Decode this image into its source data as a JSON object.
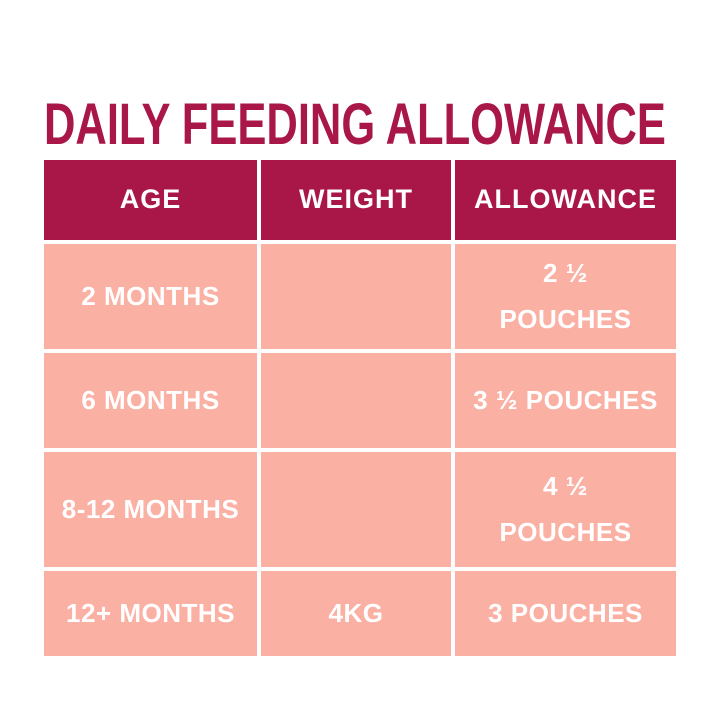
{
  "title": "DAILY FEEDING ALLOWANCE",
  "colors": {
    "accent_crimson": "#A91648",
    "row_pink": "#FBB0A4",
    "text_on_fill": "#FFFFFF",
    "background": "#FFFFFF"
  },
  "table": {
    "columns": [
      {
        "key": "age",
        "label": "AGE"
      },
      {
        "key": "weight",
        "label": "WEIGHT"
      },
      {
        "key": "allowance",
        "label": "ALLOWANCE"
      }
    ],
    "rows": [
      {
        "age": "2 MONTHS",
        "weight": "",
        "allowance": "2 ½\nPOUCHES"
      },
      {
        "age": "6 MONTHS",
        "weight": "",
        "allowance": "3 ½ POUCHES"
      },
      {
        "age": "8-12 MONTHS",
        "weight": "",
        "allowance": "4 ½\nPOUCHES"
      },
      {
        "age": "12+ MONTHS",
        "weight": "4KG",
        "allowance": "3 POUCHES"
      }
    ]
  },
  "chart_data": {
    "type": "table",
    "title": "DAILY FEEDING ALLOWANCE",
    "columns": [
      "AGE",
      "WEIGHT",
      "ALLOWANCE"
    ],
    "rows": [
      [
        "2 MONTHS",
        "",
        "2 ½ POUCHES"
      ],
      [
        "6 MONTHS",
        "",
        "3 ½ POUCHES"
      ],
      [
        "8-12 MONTHS",
        "",
        "4 ½ POUCHES"
      ],
      [
        "12+ MONTHS",
        "4KG",
        "3 POUCHES"
      ]
    ],
    "layout": {
      "header_fill": "#A91648",
      "row_fill": "#FBB0A4",
      "grid_gap_color": "#FFFFFF"
    }
  }
}
